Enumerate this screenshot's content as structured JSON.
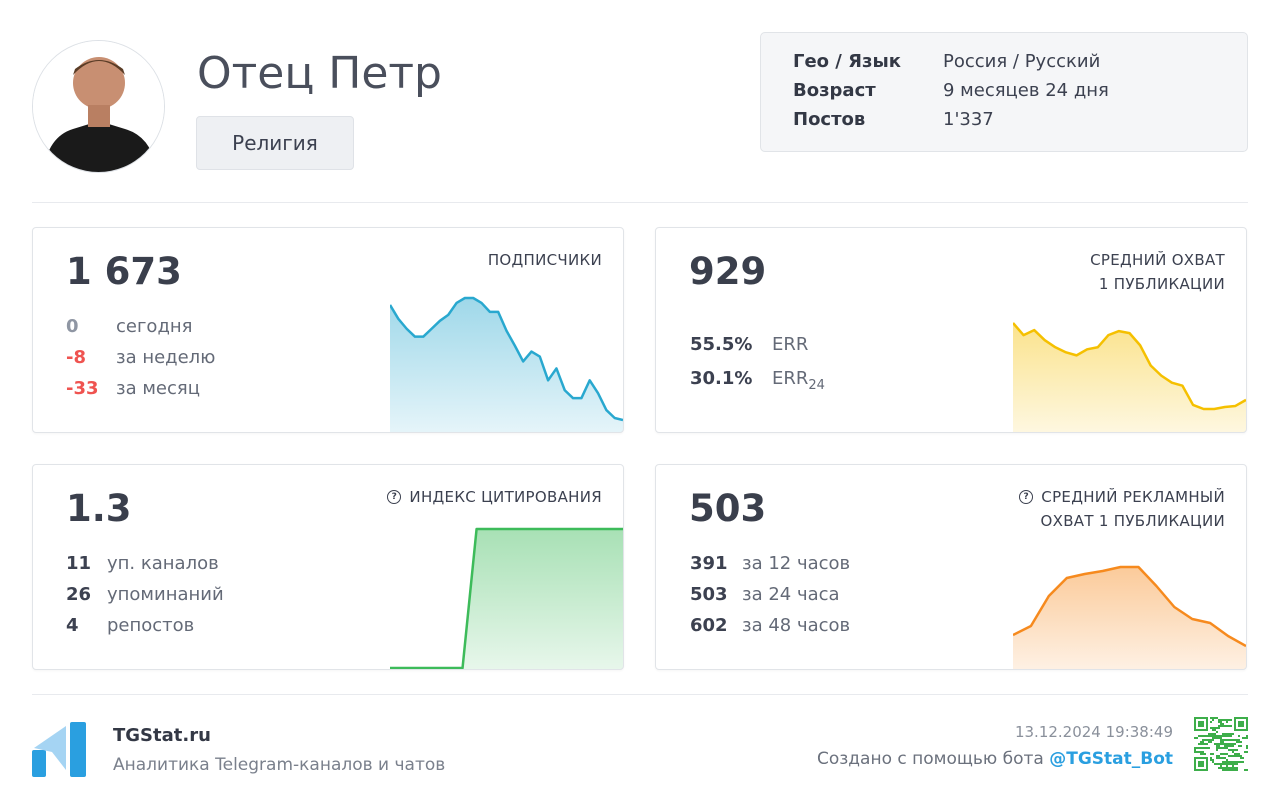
{
  "channel": {
    "name": "Отец Петр",
    "category": "Религия"
  },
  "info": [
    {
      "key": "Гео / Язык",
      "value": "Россия / Русский"
    },
    {
      "key": "Возраст",
      "value": "9 месяцев 24 дня"
    },
    {
      "key": "Постов",
      "value": "1'337"
    }
  ],
  "subscribers": {
    "value": "1 673",
    "label": "ПОДПИСЧИКИ",
    "stats": [
      {
        "value": "0",
        "label": "сегодня",
        "color": "#8f96a3"
      },
      {
        "value": "-8",
        "label": "за неделю",
        "color": "#ef5350"
      },
      {
        "value": "-33",
        "label": "за месяц",
        "color": "#ef5350"
      }
    ],
    "color": "#29a8cf",
    "trend": [
      128,
      114,
      104,
      96,
      96,
      104,
      112,
      118,
      130,
      135,
      135,
      130,
      121,
      121,
      102,
      87,
      71,
      81,
      76,
      52,
      64,
      42,
      34,
      34,
      52,
      39,
      22,
      14,
      12
    ]
  },
  "reach": {
    "value": "929",
    "label_line1": "СРЕДНИЙ ОХВАТ",
    "label_line2": "1 ПУБЛИКАЦИИ",
    "err": [
      {
        "value": "55.5%",
        "label": "ERR",
        "sub": ""
      },
      {
        "value": "30.1%",
        "label": "ERR",
        "sub": "24"
      }
    ],
    "color": "#f5c000",
    "trend": [
      109,
      97,
      102,
      92,
      85,
      80,
      77,
      83,
      85,
      97,
      101,
      99,
      87,
      67,
      57,
      50,
      47,
      28,
      24,
      24,
      26,
      27,
      33
    ]
  },
  "citation": {
    "value": "1.3",
    "label": "ИНДЕКС ЦИТИРОВАНИЯ",
    "icon": "help-circle-icon",
    "stats": [
      {
        "value": "11",
        "label": "уп. каналов"
      },
      {
        "value": "26",
        "label": "упоминаний"
      },
      {
        "value": "4",
        "label": "репостов"
      }
    ],
    "color": "#3dbb5a",
    "trend": [
      0,
      0,
      0,
      0,
      1,
      1,
      1,
      1,
      1,
      1,
      1
    ]
  },
  "ad_reach": {
    "value": "503",
    "label_line1": "СРЕДНИЙ РЕКЛАМНЫЙ",
    "label_line2": "ОХВАТ 1 ПУБЛИКАЦИИ",
    "icon": "help-circle-icon",
    "stats": [
      {
        "value": "391",
        "label": "за 12 часов"
      },
      {
        "value": "503",
        "label": "за 24 часа"
      },
      {
        "value": "602",
        "label": "за 48 часов"
      }
    ],
    "color": "#f68a1e",
    "trend": [
      34,
      43,
      73,
      91,
      95,
      98,
      102,
      102,
      83,
      62,
      50,
      46,
      33,
      23
    ]
  },
  "footer": {
    "brand": "TGStat.ru",
    "tagline": "Аналитика Telegram-каналов и чатов",
    "timestamp": "13.12.2024 19:38:49",
    "created_by": "Создано с помощью бота",
    "bot": "@TGStat_Bot"
  }
}
